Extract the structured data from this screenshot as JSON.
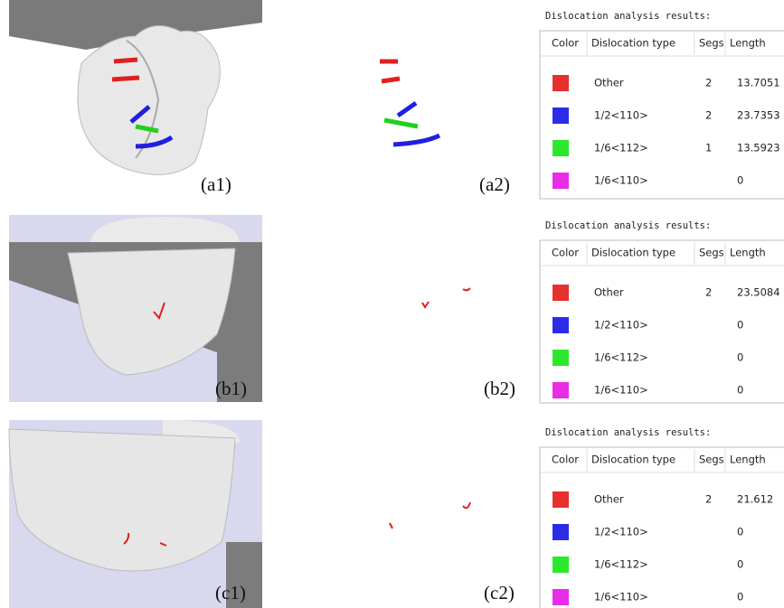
{
  "panels": [
    {
      "render_label": "(a1)",
      "lines_label": "(a2)",
      "table": {
        "title": "Dislocation analysis results:",
        "columns": [
          "Color",
          "Dislocation type",
          "Segs",
          "Length"
        ],
        "rows": [
          {
            "color": "#e8302c",
            "type": "Other",
            "segs": 2,
            "length": 13.7051
          },
          {
            "color": "#2c2ce8",
            "type": "1/2<110>",
            "segs": 2,
            "length": 23.7353
          },
          {
            "color": "#2ce82c",
            "type": "1/6<112>",
            "segs": 1,
            "length": 13.5923
          },
          {
            "color": "#e82ce8",
            "type": "1/6<110>",
            "length": 0
          }
        ]
      }
    },
    {
      "render_label": "(b1)",
      "lines_label": "(b2)",
      "table": {
        "title": "Dislocation analysis results:",
        "columns": [
          "Color",
          "Dislocation type",
          "Segs",
          "Length"
        ],
        "rows": [
          {
            "color": "#e8302c",
            "type": "Other",
            "segs": 2,
            "length": 23.5084
          },
          {
            "color": "#2c2ce8",
            "type": "1/2<110>",
            "length": 0
          },
          {
            "color": "#2ce82c",
            "type": "1/6<112>",
            "length": 0
          },
          {
            "color": "#e82ce8",
            "type": "1/6<110>",
            "length": 0
          }
        ]
      }
    },
    {
      "render_label": "(c1)",
      "lines_label": "(c2)",
      "table": {
        "title": "Dislocation analysis results:",
        "columns": [
          "Color",
          "Dislocation type",
          "Segs",
          "Length"
        ],
        "rows": [
          {
            "color": "#e8302c",
            "type": "Other",
            "segs": 2,
            "length": 21.612
          },
          {
            "color": "#2c2ce8",
            "type": "1/2<110>",
            "length": 0
          },
          {
            "color": "#2ce82c",
            "type": "1/6<112>",
            "length": 0
          },
          {
            "color": "#e82ce8",
            "type": "1/6<110>",
            "length": 0
          }
        ]
      }
    }
  ]
}
